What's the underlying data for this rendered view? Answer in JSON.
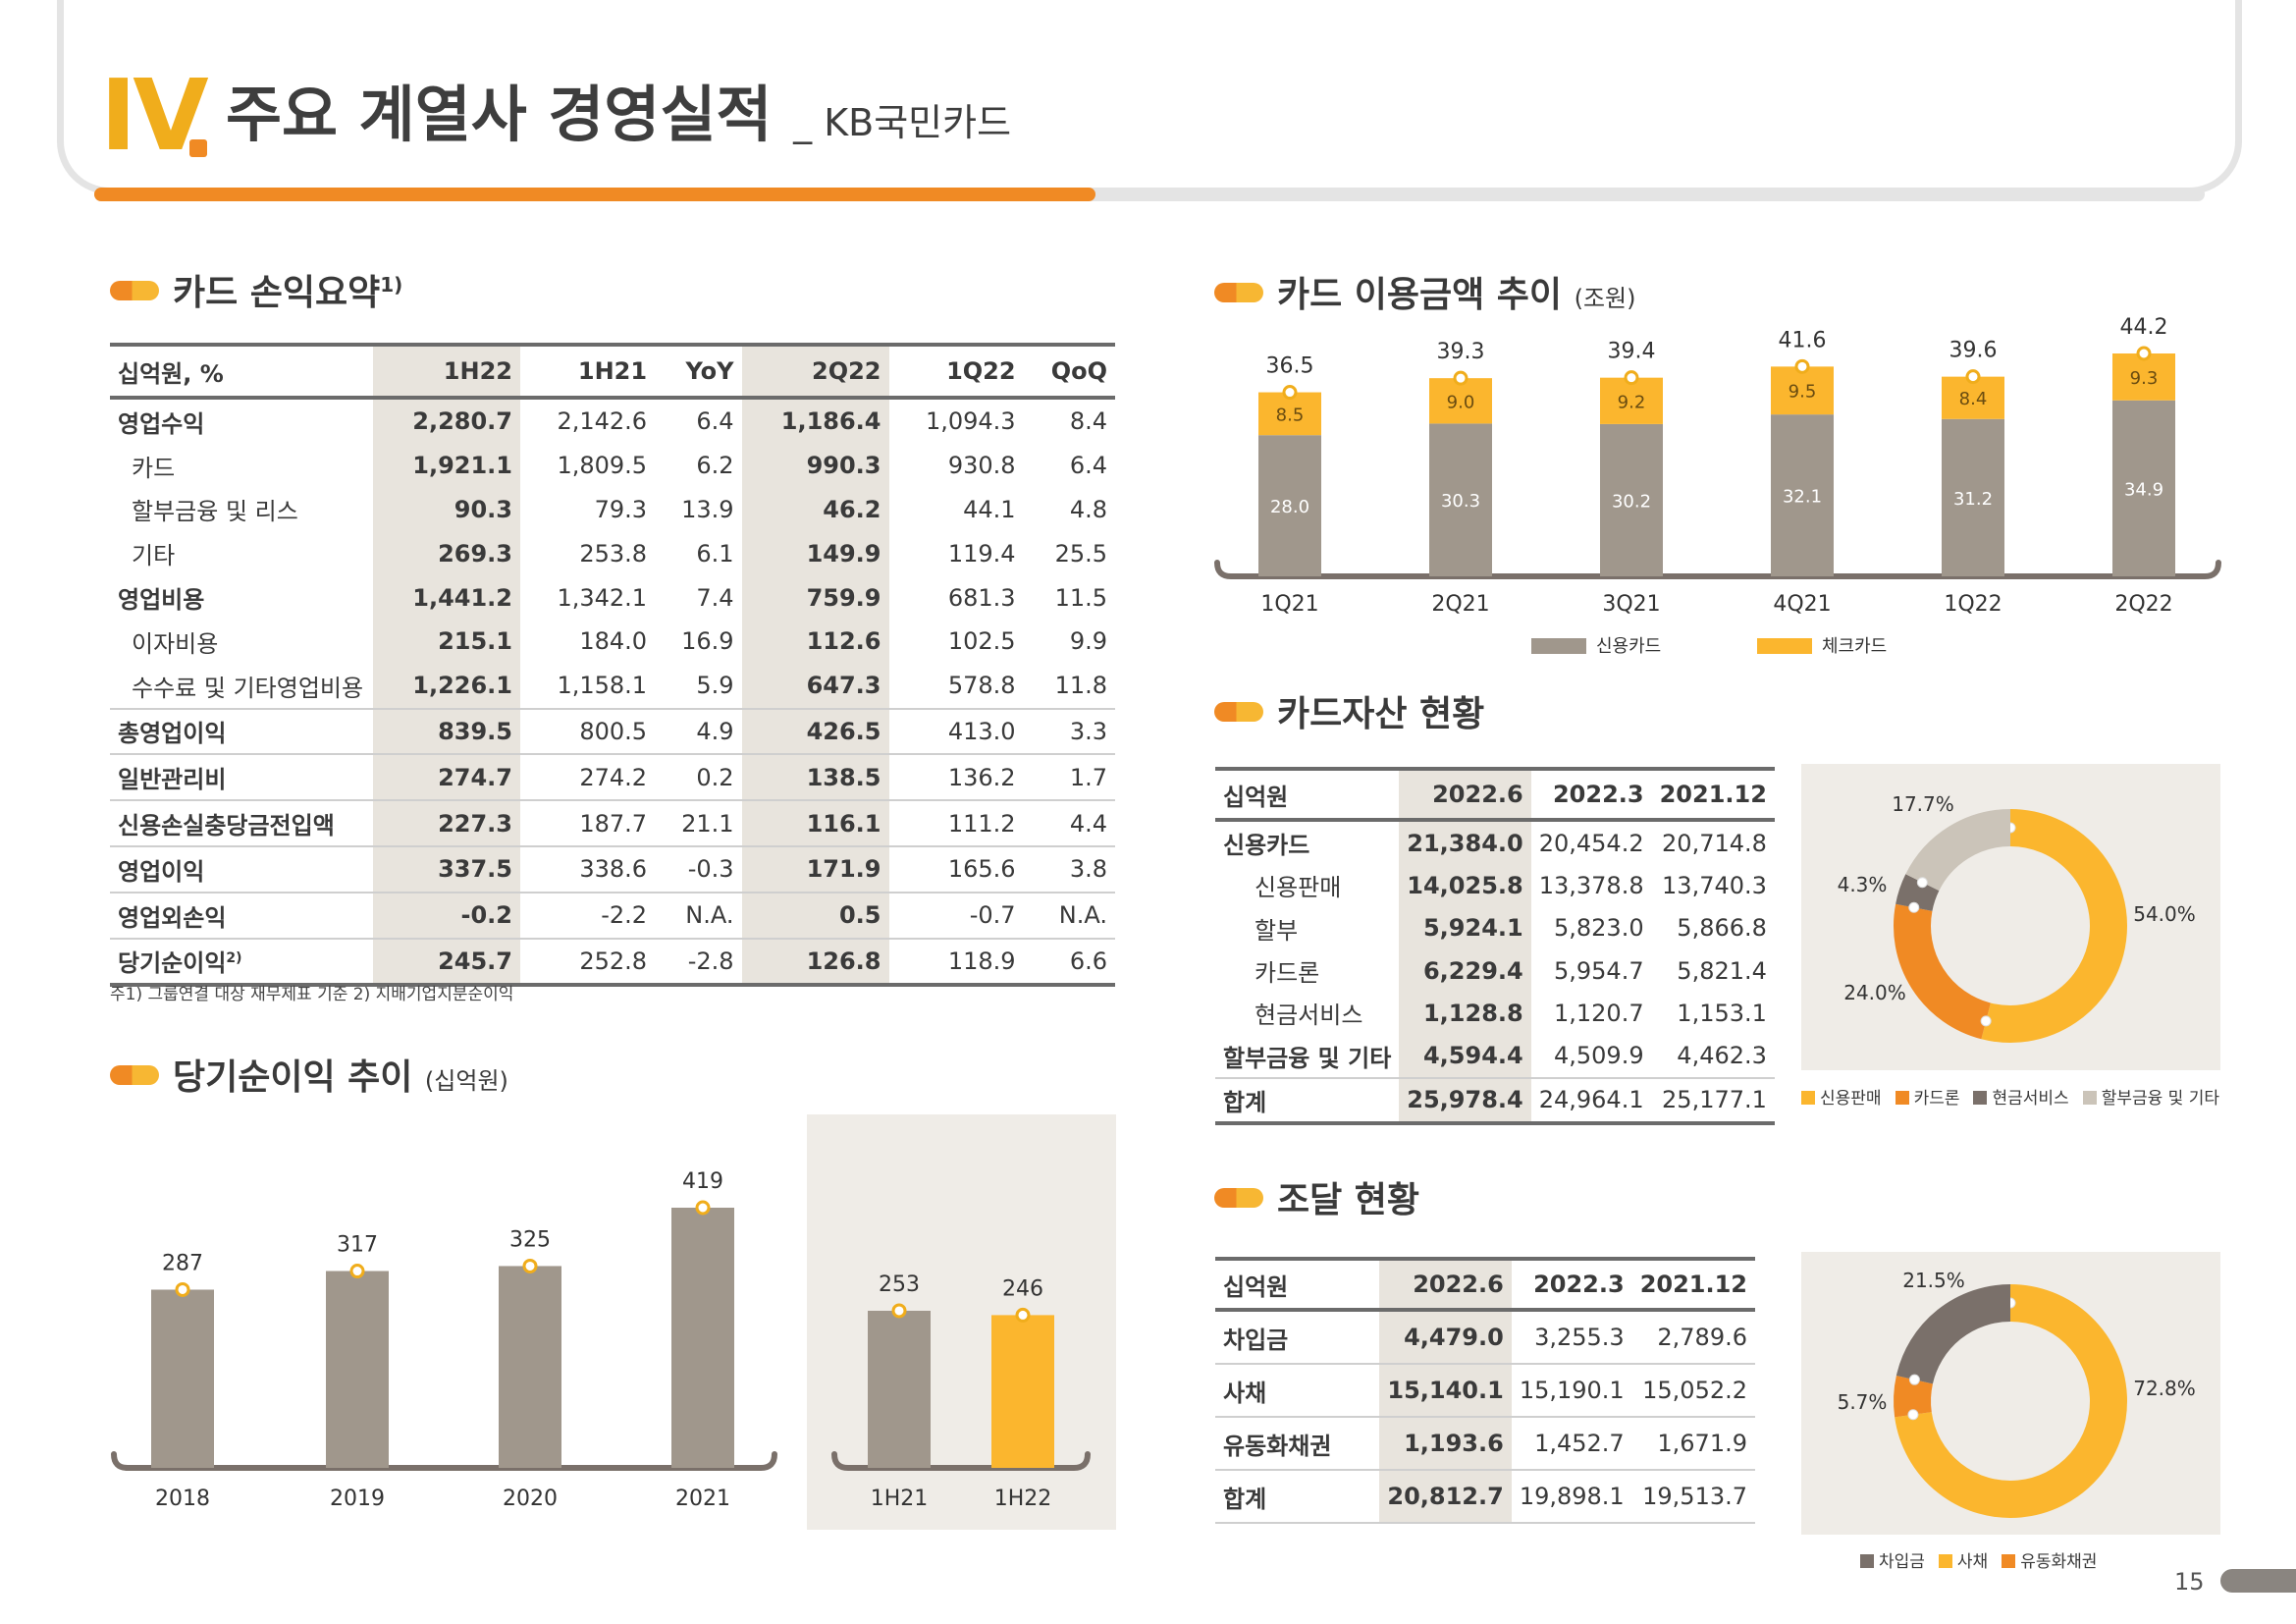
{
  "header": {
    "roman": "IV",
    "title": "주요 계열사 경영실적",
    "subtitle": "_ KB국민카드"
  },
  "colors": {
    "orange": "#f08a24",
    "yellow": "#fbb62e",
    "gray": "#a0978c",
    "darkgray": "#7a706a",
    "lightgray": "#cbc4b9"
  },
  "pl": {
    "title": "카드 손익요약",
    "title_sup": "1)",
    "columns": [
      "십억원, %",
      "1H22",
      "1H21",
      "YoY",
      "2Q22",
      "1Q22",
      "QoQ"
    ],
    "rows": [
      {
        "label": "영업수익",
        "level": 0,
        "line": false,
        "values": [
          "2,280.7",
          "2,142.6",
          "6.4",
          "1,186.4",
          "1,094.3",
          "8.4"
        ]
      },
      {
        "label": "카드",
        "level": 1,
        "line": false,
        "values": [
          "1,921.1",
          "1,809.5",
          "6.2",
          "990.3",
          "930.8",
          "6.4"
        ]
      },
      {
        "label": "할부금융 및 리스",
        "level": 1,
        "line": false,
        "values": [
          "90.3",
          "79.3",
          "13.9",
          "46.2",
          "44.1",
          "4.8"
        ]
      },
      {
        "label": "기타",
        "level": 1,
        "line": false,
        "values": [
          "269.3",
          "253.8",
          "6.1",
          "149.9",
          "119.4",
          "25.5"
        ]
      },
      {
        "label": "영업비용",
        "level": 0,
        "line": false,
        "values": [
          "1,441.2",
          "1,342.1",
          "7.4",
          "759.9",
          "681.3",
          "11.5"
        ]
      },
      {
        "label": "이자비용",
        "level": 1,
        "line": false,
        "values": [
          "215.1",
          "184.0",
          "16.9",
          "112.6",
          "102.5",
          "9.9"
        ]
      },
      {
        "label": "수수료 및 기타영업비용",
        "level": 1,
        "line": false,
        "values": [
          "1,226.1",
          "1,158.1",
          "5.9",
          "647.3",
          "578.8",
          "11.8"
        ]
      },
      {
        "label": "총영업이익",
        "level": 0,
        "line": true,
        "values": [
          "839.5",
          "800.5",
          "4.9",
          "426.5",
          "413.0",
          "3.3"
        ]
      },
      {
        "label": "일반관리비",
        "level": 0,
        "line": true,
        "values": [
          "274.7",
          "274.2",
          "0.2",
          "138.5",
          "136.2",
          "1.7"
        ]
      },
      {
        "label": "신용손실충당금전입액",
        "level": 0,
        "line": true,
        "values": [
          "227.3",
          "187.7",
          "21.1",
          "116.1",
          "111.2",
          "4.4"
        ]
      },
      {
        "label": "영업이익",
        "level": 0,
        "line": true,
        "values": [
          "337.5",
          "338.6",
          "-0.3",
          "171.9",
          "165.6",
          "3.8"
        ]
      },
      {
        "label": "영업외손익",
        "level": 0,
        "line": true,
        "values": [
          "-0.2",
          "-2.2",
          "N.A.",
          "0.5",
          "-0.7",
          "N.A."
        ]
      },
      {
        "label": "당기순이익",
        "label_sup": "2)",
        "level": 0,
        "line": true,
        "values": [
          "245.7",
          "252.8",
          "-2.8",
          "126.8",
          "118.9",
          "6.6"
        ]
      }
    ],
    "note": "주1) 그룹연결 대상 재무제표 기준   2) 지배기업지분순이익"
  },
  "net_income": {
    "title": "당기순이익 추이",
    "unit": "(십억원)",
    "annual": {
      "categories": [
        "2018",
        "2019",
        "2020",
        "2021"
      ],
      "values": [
        287,
        317,
        325,
        419
      ]
    },
    "half": {
      "categories": [
        "1H21",
        "1H22"
      ],
      "values": [
        253,
        246
      ]
    }
  },
  "usage": {
    "title": "카드 이용금액 추이",
    "unit": "(조원)",
    "legend": [
      "신용카드",
      "체크카드"
    ],
    "chart_data": {
      "type": "bar",
      "categories": [
        "1Q21",
        "2Q21",
        "3Q21",
        "4Q21",
        "1Q22",
        "2Q22"
      ],
      "series": [
        {
          "name": "신용카드",
          "values": [
            28.0,
            30.3,
            30.2,
            32.1,
            31.2,
            34.9
          ]
        },
        {
          "name": "체크카드",
          "values": [
            8.5,
            9.0,
            9.2,
            9.5,
            8.4,
            9.3
          ]
        }
      ],
      "totals": [
        36.5,
        39.3,
        39.4,
        41.6,
        39.6,
        44.2
      ]
    },
    "labels": {
      "credit": [
        "28.0",
        "30.3",
        "30.2",
        "32.1",
        "31.2",
        "34.9"
      ],
      "check": [
        "8.5",
        "9.0",
        "9.2",
        "9.5",
        "8.4",
        "9.3"
      ],
      "totals": [
        "36.5",
        "39.3",
        "39.4",
        "41.6",
        "39.6",
        "44.2"
      ]
    }
  },
  "assets": {
    "title": "카드자산 현황",
    "columns": [
      "십억원",
      "2022.6",
      "2022.3",
      "2021.12"
    ],
    "rows": [
      {
        "label": "신용카드",
        "level": 0,
        "line": false,
        "values": [
          "21,384.0",
          "20,454.2",
          "20,714.8"
        ]
      },
      {
        "label": "신용판매",
        "level": 2,
        "line": false,
        "values": [
          "14,025.8",
          "13,378.8",
          "13,740.3"
        ]
      },
      {
        "label": "할부",
        "level": 2,
        "line": false,
        "values": [
          "5,924.1",
          "5,823.0",
          "5,866.8"
        ]
      },
      {
        "label": "카드론",
        "level": 2,
        "line": false,
        "values": [
          "6,229.4",
          "5,954.7",
          "5,821.4"
        ]
      },
      {
        "label": "현금서비스",
        "level": 2,
        "line": false,
        "values": [
          "1,128.8",
          "1,120.7",
          "1,153.1"
        ]
      },
      {
        "label": "할부금융 및 기타",
        "level": 0,
        "line": false,
        "values": [
          "4,594.4",
          "4,509.9",
          "4,462.3"
        ]
      },
      {
        "label": "합계",
        "level": 0,
        "line": true,
        "values": [
          "25,978.4",
          "24,964.1",
          "25,177.1"
        ]
      }
    ],
    "donut": {
      "chart_data": {
        "type": "pie",
        "categories": [
          "신용판매",
          "카드론",
          "현금서비스",
          "할부금융 및 기타"
        ],
        "values": [
          54.0,
          24.0,
          4.3,
          17.7
        ]
      },
      "labels": [
        "54.0%",
        "24.0%",
        "4.3%",
        "17.7%"
      ],
      "legend": [
        "신용판매",
        "카드론",
        "현금서비스",
        "할부금융 및 기타"
      ]
    }
  },
  "funding": {
    "title": "조달 현황",
    "columns": [
      "십억원",
      "2022.6",
      "2022.3",
      "2021.12"
    ],
    "rows": [
      {
        "label": "차입금",
        "level": 0,
        "line": false,
        "values": [
          "4,479.0",
          "3,255.3",
          "2,789.6"
        ]
      },
      {
        "label": "사채",
        "level": 0,
        "line": false,
        "values": [
          "15,140.1",
          "15,190.1",
          "15,052.2"
        ]
      },
      {
        "label": "유동화채권",
        "level": 0,
        "line": false,
        "values": [
          "1,193.6",
          "1,452.7",
          "1,671.9"
        ]
      },
      {
        "label": "합계",
        "level": 0,
        "line": false,
        "values": [
          "20,812.7",
          "19,898.1",
          "19,513.7"
        ]
      }
    ],
    "donut": {
      "chart_data": {
        "type": "pie",
        "categories": [
          "사채",
          "유동화채권",
          "차입금"
        ],
        "values": [
          72.8,
          5.7,
          21.5
        ]
      },
      "labels": [
        "72.8%",
        "5.7%",
        "21.5%"
      ],
      "legend": [
        "차입금",
        "사채",
        "유동화채권"
      ]
    }
  },
  "page_number": "15"
}
